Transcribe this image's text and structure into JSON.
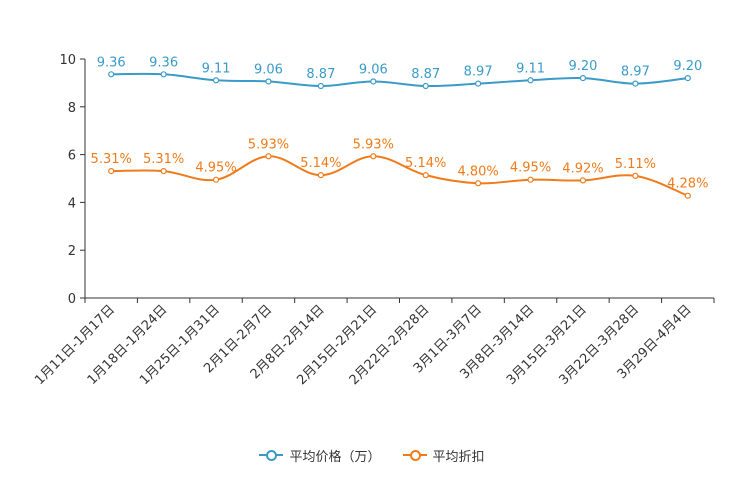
{
  "chart_data": {
    "type": "line",
    "title": "",
    "xlabel": "",
    "ylabel": "",
    "ylim": [
      0,
      10
    ],
    "yticks": [
      "0",
      "2",
      "4",
      "6",
      "8",
      "10"
    ],
    "categories": [
      "1月11日-1月17日",
      "1月18日-1月24日",
      "1月25日-1月31日",
      "2月1日-2月7日",
      "2月8日-2月14日",
      "2月15日-2月21日",
      "2月22日-2月28日",
      "3月1日-3月7日",
      "3月8日-3月14日",
      "3月15日-3月21日",
      "3月22日-3月28日",
      "3月29日-4月4日"
    ],
    "series": [
      {
        "name": "平均价格（万）",
        "color": "#3a9bc9",
        "values": [
          9.36,
          9.36,
          9.11,
          9.06,
          8.87,
          9.06,
          8.87,
          8.97,
          9.11,
          9.2,
          8.97,
          9.2
        ],
        "labels": [
          "9.36",
          "9.36",
          "9.11",
          "9.06",
          "8.87",
          "9.06",
          "8.87",
          "8.97",
          "9.11",
          "9.20",
          "8.97",
          "9.20"
        ]
      },
      {
        "name": "平均折扣",
        "color": "#f07b1a",
        "values": [
          5.31,
          5.31,
          4.95,
          5.93,
          5.14,
          5.93,
          5.14,
          4.8,
          4.95,
          4.92,
          5.11,
          4.28
        ],
        "labels": [
          "5.31%",
          "5.31%",
          "4.95%",
          "5.93%",
          "5.14%",
          "5.93%",
          "5.14%",
          "4.80%",
          "4.95%",
          "4.92%",
          "5.11%",
          "4.28%"
        ]
      }
    ],
    "legend_position": "bottom-center"
  }
}
